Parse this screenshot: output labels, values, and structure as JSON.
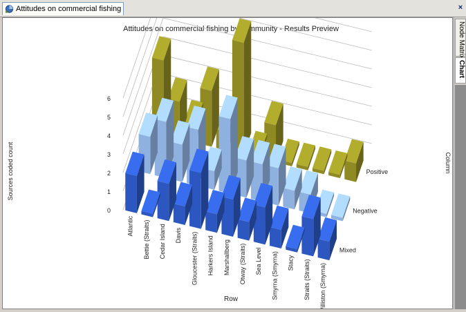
{
  "tab": {
    "title": "Attitudes on commercial fishing by",
    "close_glyph": "×"
  },
  "side_tabs": [
    "Node Matrix",
    "Chart"
  ],
  "chart_data": {
    "type": "bar",
    "variant": "3d-clustered-column",
    "title": "Attitudes on commercial fishing by community - Results Preview",
    "xlabel": "Row",
    "ylabel": "Sources coded count",
    "zlabel": "Column",
    "ylim": [
      0,
      6
    ],
    "yticks": [
      0,
      1,
      2,
      3,
      4,
      5,
      6
    ],
    "grid": true,
    "categories": [
      "Atlantic",
      "Bettie (Straits)",
      "Cedar Island",
      "Davis",
      "Gloucester (Straits)",
      "Harkers Island",
      "Marshallberg",
      "Otway (Straits)",
      "Sea Level",
      "Smyrna (Smyrna)",
      "Stacy",
      "Straits (Straits)",
      "Williston (Smyrna)"
    ],
    "series": [
      {
        "name": "Positive",
        "color": "#8f8a24",
        "values": [
          4,
          2,
          1,
          3,
          1,
          6,
          0,
          2,
          0,
          0,
          0,
          0,
          1
        ]
      },
      {
        "name": "Negative",
        "color": "#8fb1e0",
        "values": [
          2,
          3,
          2,
          3,
          1,
          4,
          2,
          2,
          2,
          1,
          1,
          0,
          0
        ]
      },
      {
        "name": "Mixed",
        "color": "#2d57c0",
        "values": [
          2,
          0,
          2,
          1,
          3,
          1,
          2,
          1,
          2,
          1,
          0,
          2,
          1
        ]
      }
    ]
  }
}
